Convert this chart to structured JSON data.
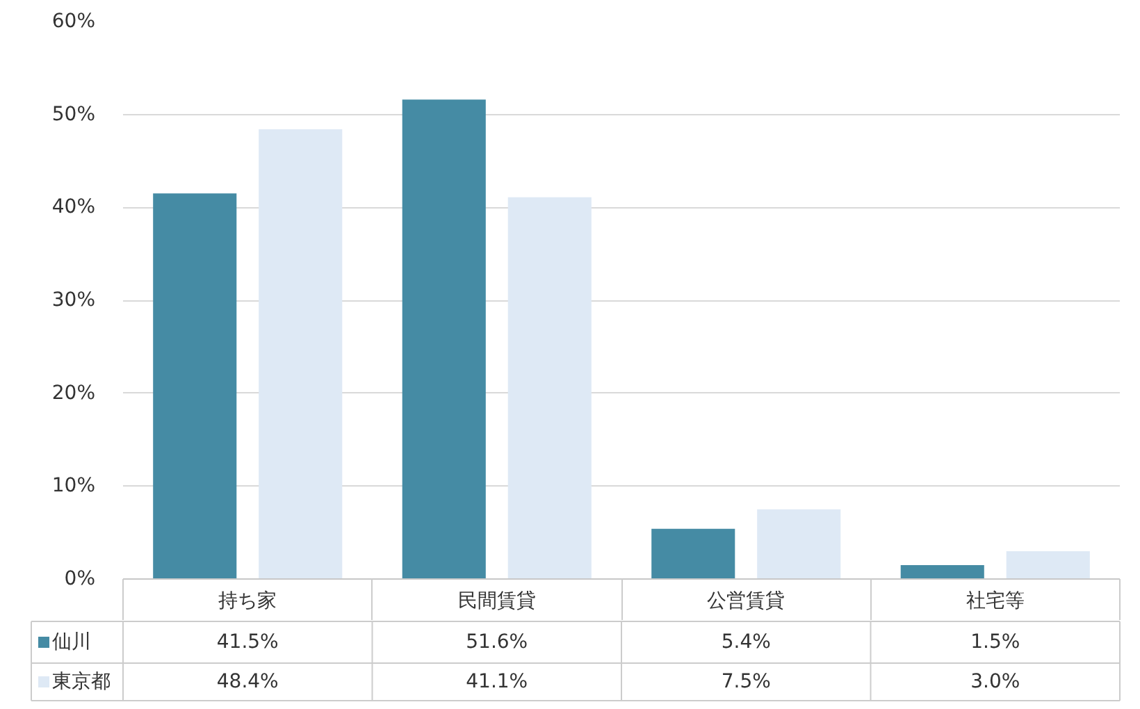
{
  "chart_data": {
    "type": "bar",
    "categories": [
      "持ち家",
      "民間賃貸",
      "公営賃貸",
      "社宅等"
    ],
    "series": [
      {
        "name": "仙川",
        "color": "#458ba4",
        "values": [
          41.5,
          51.6,
          5.4,
          1.5
        ],
        "value_labels": [
          "41.5%",
          "51.6%",
          "5.4%",
          "1.5%"
        ]
      },
      {
        "name": "東京都",
        "color": "#dee9f5",
        "values": [
          48.4,
          41.1,
          7.5,
          3.0
        ],
        "value_labels": [
          "48.4%",
          "41.1%",
          "7.5%",
          "3.0%"
        ]
      }
    ],
    "ylim": [
      0,
      60
    ],
    "yticks": [
      {
        "value": 0,
        "label": "0%"
      },
      {
        "value": 10,
        "label": "10%"
      },
      {
        "value": 20,
        "label": "20%"
      },
      {
        "value": 30,
        "label": "30%"
      },
      {
        "value": 40,
        "label": "40%"
      },
      {
        "value": 50,
        "label": "50%"
      },
      {
        "value": 60,
        "label": "60%"
      }
    ],
    "grid": "y",
    "legend": "bottom"
  }
}
